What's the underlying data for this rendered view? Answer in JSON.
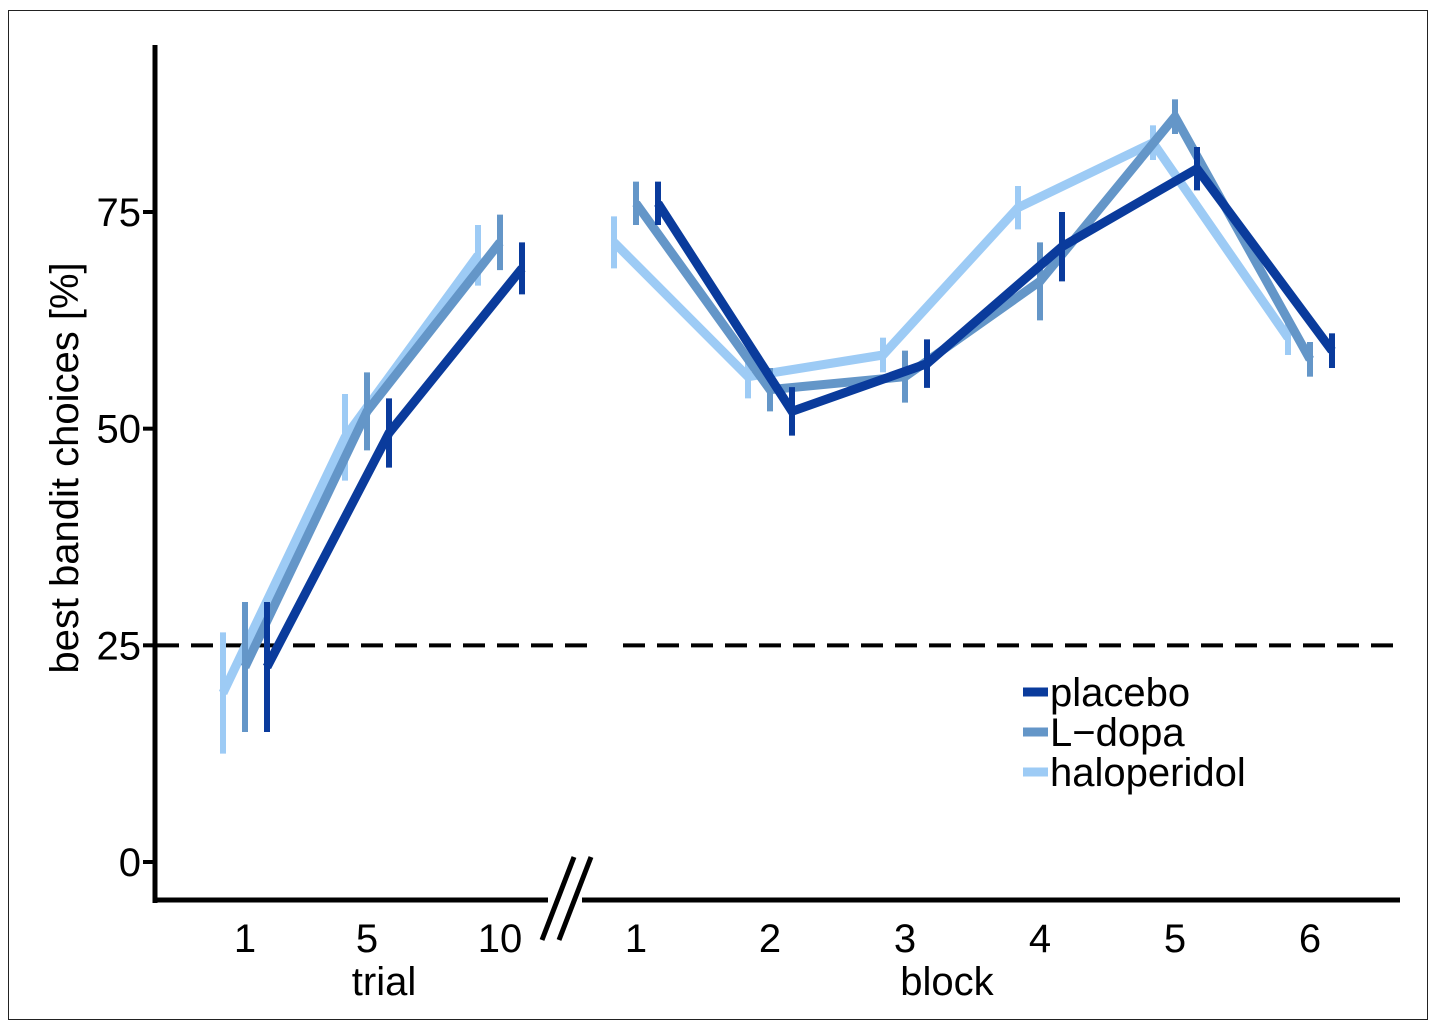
{
  "chart_data": {
    "type": "line",
    "ylabel": "best bandit choices [%]",
    "ylim": [
      -4,
      95
    ],
    "yticks": [
      0,
      25,
      50,
      75
    ],
    "reference_line": {
      "y": 25,
      "style": "dashed",
      "color": "#000000"
    },
    "panels": [
      {
        "xlabel": "trial",
        "categories": [
          "1",
          "5",
          "10"
        ]
      },
      {
        "xlabel": "block",
        "categories": [
          "1",
          "2",
          "3",
          "4",
          "5",
          "6"
        ]
      }
    ],
    "series": [
      {
        "name": "placebo",
        "color": "#0a3b9c",
        "trial": {
          "values": [
            22.5,
            49.5,
            68.5
          ],
          "errors": [
            7.5,
            4.0,
            3.0
          ]
        },
        "block": {
          "values": [
            76,
            52,
            57.5,
            71,
            80,
            59
          ],
          "errors": [
            2.5,
            2.8,
            2.8,
            4.0,
            2.5,
            2.0
          ]
        }
      },
      {
        "name": "L−dopa",
        "color": "#6496c8",
        "trial": {
          "values": [
            22.5,
            52,
            71.5
          ],
          "errors": [
            7.5,
            4.5,
            3.2
          ]
        },
        "block": {
          "values": [
            76,
            54.5,
            56,
            67,
            86,
            58
          ],
          "errors": [
            2.5,
            2.5,
            3.0,
            4.5,
            2.0,
            2.0
          ]
        }
      },
      {
        "name": "haloperidol",
        "color": "#9dcbf5",
        "trial": {
          "values": [
            19.5,
            49,
            70
          ],
          "errors": [
            7.0,
            5.0,
            3.5
          ]
        },
        "block": {
          "values": [
            71.5,
            56,
            58.5,
            75.5,
            83,
            60.5
          ],
          "errors": [
            3.0,
            2.5,
            2.0,
            2.5,
            2.0,
            2.0
          ]
        }
      }
    ],
    "legend": {
      "position": "bottom-right",
      "entries": [
        "placebo",
        "L−dopa",
        "haloperidol"
      ]
    },
    "grid": false
  }
}
